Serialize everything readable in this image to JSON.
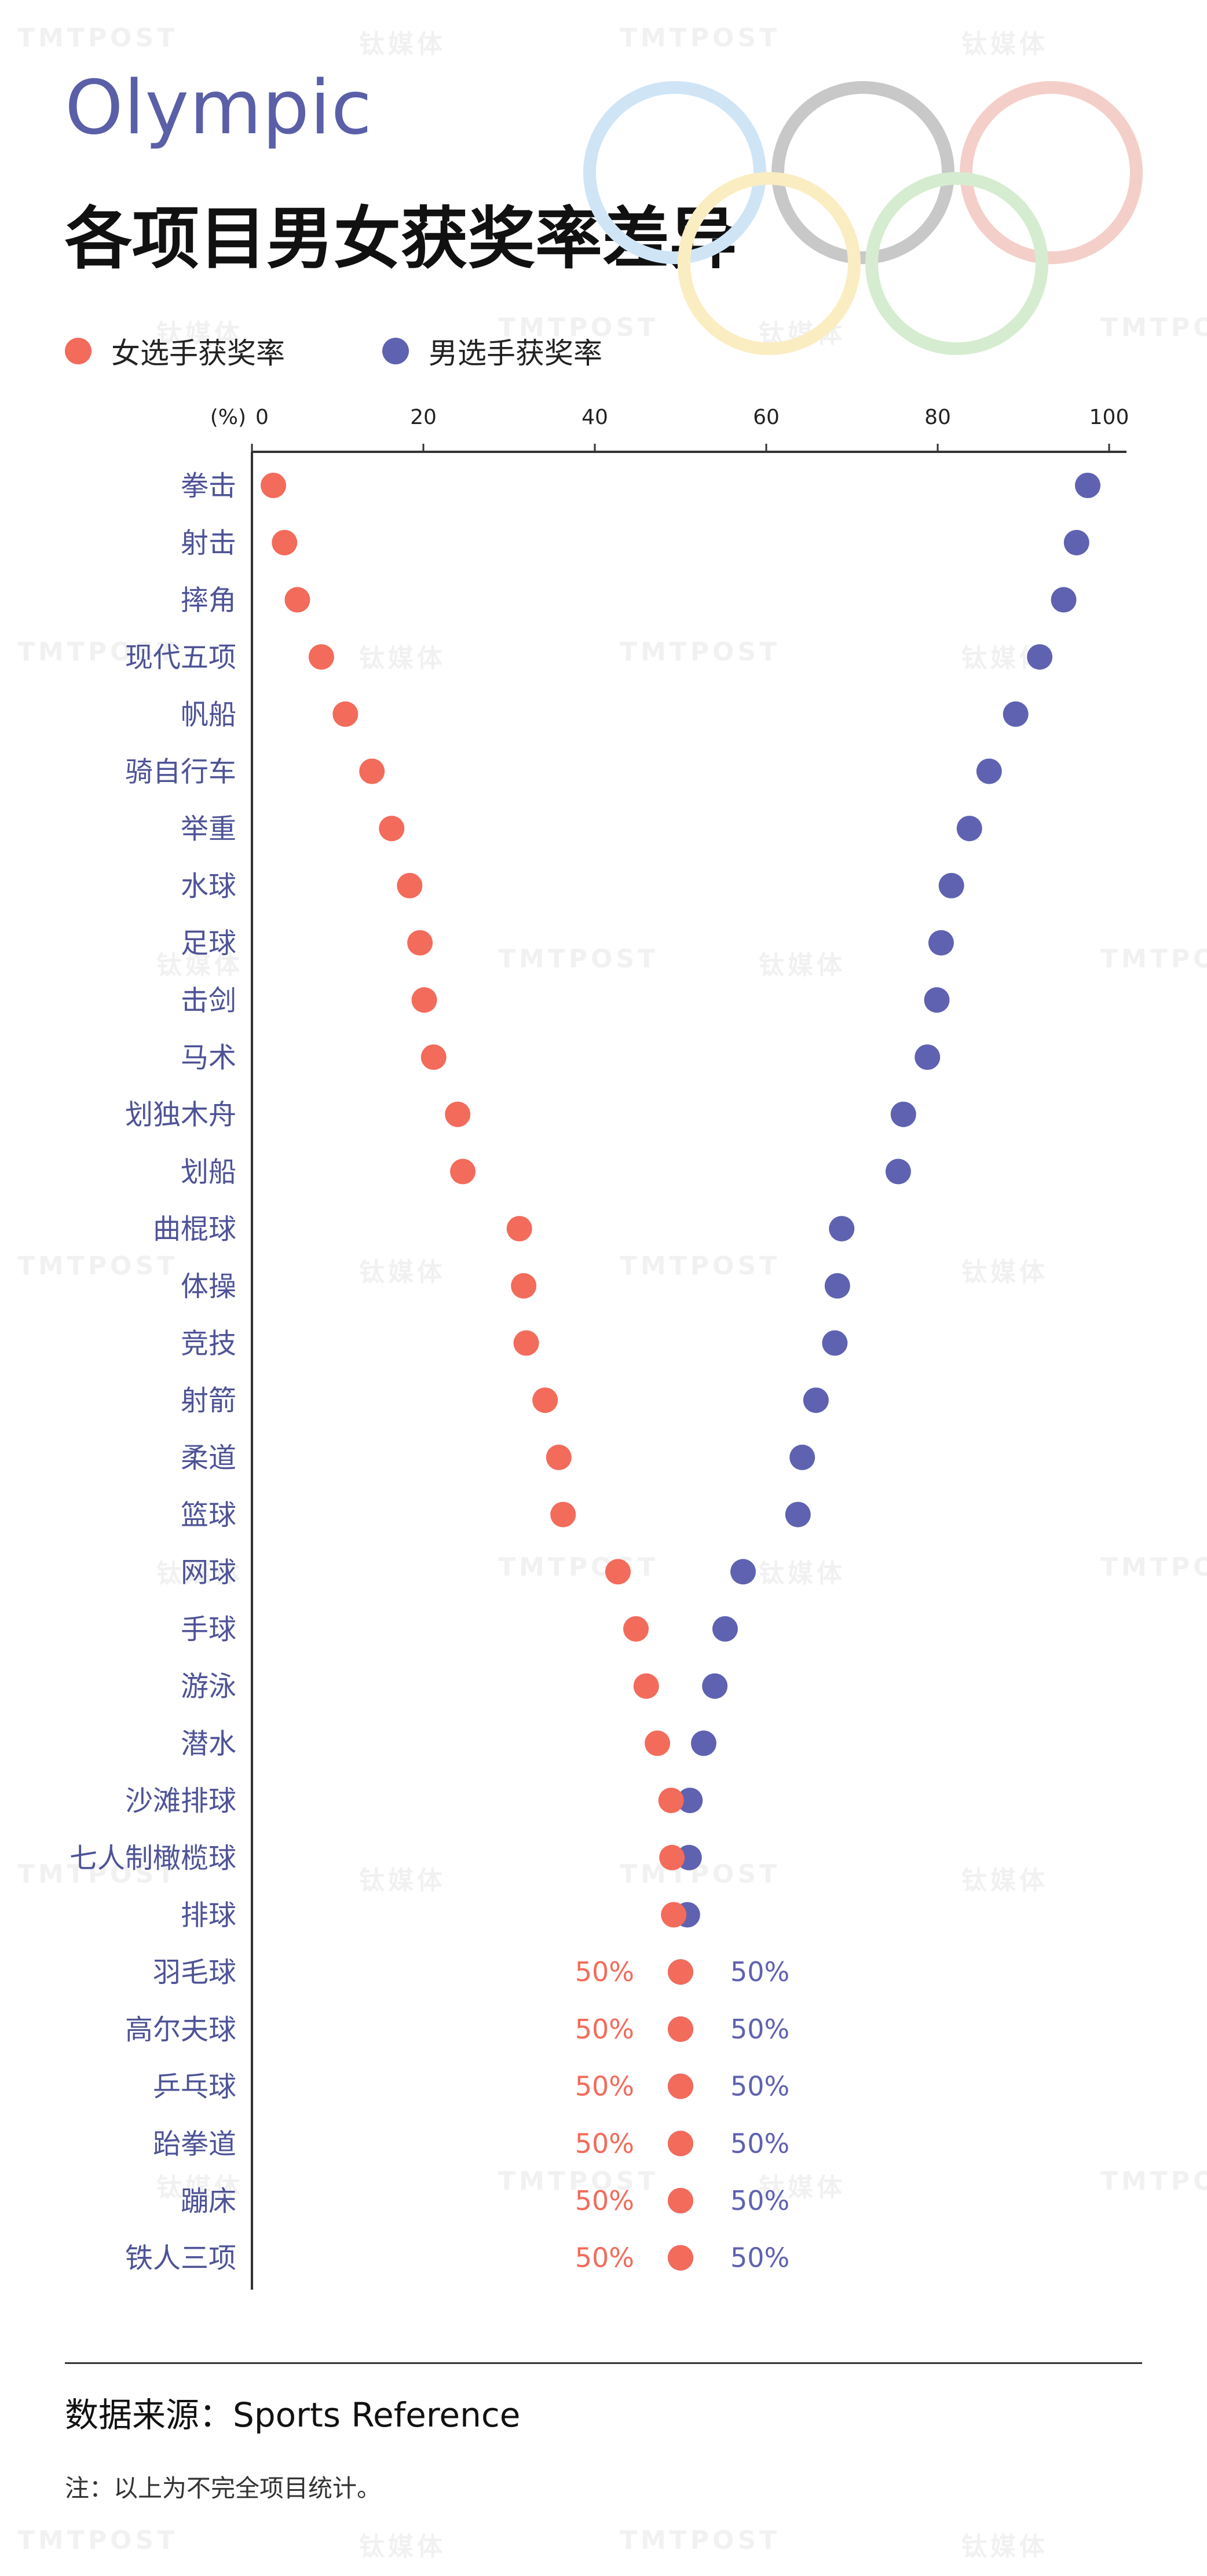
{
  "header": {
    "title_en": "Olympic",
    "title_cn": "各项目男女获奖率差异"
  },
  "watermarks": [
    "TMTPOST",
    "钛媒体"
  ],
  "colors": {
    "female": "#f26b5b",
    "male": "#5f62b0",
    "title_en": "#5a5fa8",
    "rings": [
      "#cfe5f6",
      "#c8c8c8",
      "#f4cfc9",
      "#fbedc2",
      "#d6ecd0"
    ]
  },
  "footer": {
    "source": "数据来源：Sports Reference",
    "note": "注：以上为不完全项目统计。"
  },
  "chart_data": {
    "type": "scatter",
    "orientation": "horizontal-dot-plot",
    "x_unit_label": "(%)",
    "xlim": [
      0,
      100
    ],
    "x_ticks": [
      0,
      20,
      40,
      60,
      80,
      100
    ],
    "legend_placement": "top-left",
    "legend": [
      "女选手获奖率",
      "男选手获奖率"
    ],
    "series_names": [
      "女选手获奖率",
      "男选手获奖率"
    ],
    "categories": [
      "拳击",
      "射击",
      "摔角",
      "现代五项",
      "帆船",
      "骑自行车",
      "举重",
      "水球",
      "足球",
      "击剑",
      "马术",
      "划独木舟",
      "划船",
      "曲棍球",
      "体操",
      "竞技",
      "射箭",
      "柔道",
      "篮球",
      "网球",
      "手球",
      "游泳",
      "潜水",
      "沙滩排球",
      "七人制橄榄球",
      "排球",
      "羽毛球",
      "高尔夫球",
      "乒乓球",
      "跆拳道",
      "蹦床",
      "铁人三项"
    ],
    "female": [
      2.5,
      3.8,
      5.3,
      8.1,
      10.9,
      14.0,
      16.3,
      18.4,
      19.6,
      20.1,
      21.2,
      24.0,
      24.6,
      31.2,
      31.7,
      32.0,
      34.2,
      35.8,
      36.3,
      42.7,
      44.8,
      46.0,
      47.3,
      48.9,
      49.0,
      49.2,
      50,
      50,
      50,
      50,
      50,
      50
    ],
    "male": [
      97.5,
      96.2,
      94.7,
      91.9,
      89.1,
      86.0,
      83.7,
      81.6,
      80.4,
      79.9,
      78.8,
      76.0,
      75.4,
      68.8,
      68.3,
      68.0,
      65.8,
      64.2,
      63.7,
      57.3,
      55.2,
      54.0,
      52.7,
      51.1,
      51.0,
      50.8,
      50,
      50,
      50,
      50,
      50,
      50
    ],
    "equal_labels": {
      "categories": [
        "羽毛球",
        "高尔夫球",
        "乒乓球",
        "跆拳道",
        "蹦床",
        "铁人三项"
      ],
      "female_text": "50%",
      "male_text": "50%"
    }
  }
}
